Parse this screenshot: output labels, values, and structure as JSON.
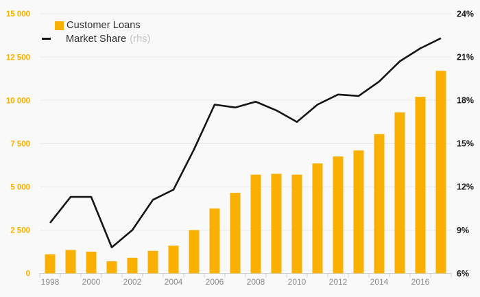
{
  "chart_data": {
    "type": "combo",
    "title": "",
    "categories": [
      "1998",
      "1999",
      "2000",
      "2001",
      "2002",
      "2003",
      "2004",
      "2005",
      "2006",
      "2007",
      "2008",
      "2009",
      "2010",
      "2011",
      "2012",
      "2013",
      "2014",
      "2015",
      "2016",
      "2017"
    ],
    "series": [
      {
        "name": "Customer Loans",
        "type": "bar",
        "axis": "left",
        "values": [
          1100,
          1350,
          1250,
          700,
          900,
          1300,
          1600,
          2500,
          3750,
          4650,
          5700,
          5750,
          5700,
          6350,
          6750,
          7100,
          8050,
          9300,
          10200,
          11700
        ]
      },
      {
        "name": "Market Share",
        "type": "line",
        "axis": "right",
        "unit": "%",
        "values": [
          9.5,
          11.3,
          11.3,
          7.8,
          9.0,
          11.1,
          11.8,
          14.6,
          17.7,
          17.5,
          17.9,
          17.3,
          16.5,
          17.7,
          18.4,
          18.3,
          19.3,
          20.7,
          21.6,
          22.3
        ]
      }
    ],
    "x_tick_labels": [
      "1998",
      "2000",
      "2002",
      "2004",
      "2006",
      "2008",
      "2010",
      "2012",
      "2014",
      "2016"
    ],
    "left_axis": {
      "min": 0,
      "max": 15000,
      "step": 2500,
      "tick_labels": [
        "0",
        "2 500",
        "5 000",
        "7 500",
        "10 000",
        "12 500",
        "15 000"
      ]
    },
    "right_axis": {
      "min": 6,
      "max": 24,
      "step": 3,
      "tick_labels": [
        "6%",
        "9%",
        "12%",
        "15%",
        "18%",
        "21%",
        "24%"
      ]
    },
    "grid": "horizontal",
    "legend_position": "top-left"
  },
  "legend": {
    "items": [
      {
        "label": "Customer Loans",
        "marker": "bar-swatch"
      },
      {
        "label": "Market Share",
        "suffix": "(rhs)",
        "marker": "line-swatch"
      }
    ]
  },
  "colors": {
    "bar": "#F9B000",
    "line": "#141414",
    "grid": "#e9e9e9",
    "axis": "#c6cfe2",
    "x_label": "#8b8b8b",
    "left_label": "#F9B000",
    "right_label": "#1a1a1a",
    "legend_text": "#2e2e2e",
    "rhs_text": "#c3c3c3",
    "background": "#f9f9f9"
  }
}
